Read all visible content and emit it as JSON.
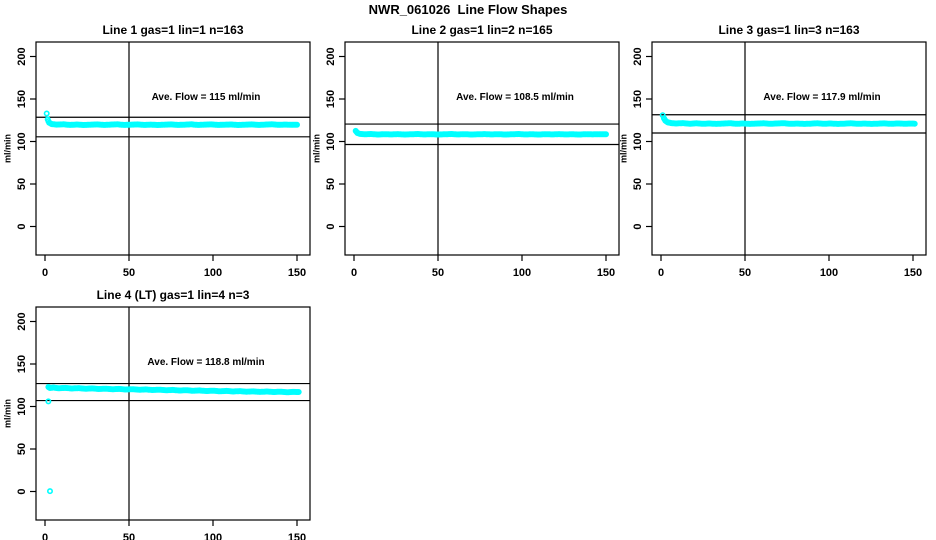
{
  "page_title": "NWR_061026  Line Flow Shapes",
  "colors": {
    "marker": "#00FFFF",
    "axis": "#000000",
    "background": "#FFFFFF"
  },
  "chart_data": [
    {
      "type": "scatter",
      "title": "Line 1 gas=1 lin=1 n=163",
      "ave_flow": 115,
      "ave_flow_label": "Ave. Flow =  115  ml/min",
      "n": 163,
      "ylabel": "ml/min",
      "xticks": [
        0,
        50,
        100,
        150
      ],
      "yticks": [
        0,
        50,
        100,
        150,
        200
      ],
      "xlim": [
        -5,
        157
      ],
      "ylim": [
        -33,
        217
      ],
      "vline_x": 50,
      "limit_upper": 128.5,
      "limit_lower": 105.5,
      "points": [
        [
          1,
          133
        ],
        [
          1.6,
          126
        ],
        [
          2.5,
          122
        ],
        [
          4,
          120.5
        ],
        [
          7,
          119.9
        ],
        [
          11,
          120.2
        ],
        [
          15,
          119.5
        ],
        [
          19,
          120.0
        ],
        [
          23,
          119.4
        ],
        [
          27,
          119.8
        ],
        [
          31,
          120.1
        ],
        [
          35,
          119.5
        ],
        [
          39,
          119.9
        ],
        [
          43,
          120.2
        ],
        [
          47,
          119.5
        ],
        [
          51,
          119.8
        ],
        [
          55,
          120.1
        ],
        [
          59,
          119.5
        ],
        [
          63,
          119.9
        ],
        [
          67,
          119.4
        ],
        [
          71,
          119.8
        ],
        [
          75,
          120.1
        ],
        [
          79,
          119.5
        ],
        [
          83,
          119.8
        ],
        [
          87,
          120.2
        ],
        [
          91,
          119.5
        ],
        [
          95,
          119.9
        ],
        [
          99,
          120.1
        ],
        [
          103,
          119.5
        ],
        [
          107,
          119.8
        ],
        [
          111,
          120.0
        ],
        [
          115,
          119.4
        ],
        [
          119,
          119.8
        ],
        [
          123,
          120.1
        ],
        [
          127,
          119.5
        ],
        [
          131,
          119.9
        ],
        [
          135,
          120.2
        ],
        [
          139,
          119.6
        ],
        [
          143,
          119.9
        ],
        [
          147,
          119.7
        ],
        [
          150,
          119.8
        ]
      ],
      "extra_points": []
    },
    {
      "type": "scatter",
      "title": "Line 2 gas=1 lin=2 n=165",
      "ave_flow": 108.5,
      "ave_flow_label": "Ave. Flow =  108.5  ml/min",
      "n": 165,
      "ylabel": "ml/min",
      "xticks": [
        0,
        50,
        100,
        150
      ],
      "yticks": [
        0,
        50,
        100,
        150,
        200
      ],
      "xlim": [
        -5,
        157
      ],
      "ylim": [
        -33,
        217
      ],
      "vline_x": 50,
      "limit_upper": 120.5,
      "limit_lower": 96.5,
      "points": [
        [
          1,
          112.5
        ],
        [
          2,
          110
        ],
        [
          3.5,
          109
        ],
        [
          6,
          108.5
        ],
        [
          10,
          108.8
        ],
        [
          14,
          108.2
        ],
        [
          18,
          108.6
        ],
        [
          22,
          108.3
        ],
        [
          26,
          108.7
        ],
        [
          30,
          108.2
        ],
        [
          34,
          108.5
        ],
        [
          38,
          108.8
        ],
        [
          42,
          108.3
        ],
        [
          46,
          108.6
        ],
        [
          50,
          108.2
        ],
        [
          54,
          108.5
        ],
        [
          58,
          108.8
        ],
        [
          62,
          108.3
        ],
        [
          66,
          108.6
        ],
        [
          70,
          108.2
        ],
        [
          74,
          108.5
        ],
        [
          78,
          108.7
        ],
        [
          82,
          108.3
        ],
        [
          86,
          108.6
        ],
        [
          90,
          108.2
        ],
        [
          94,
          108.5
        ],
        [
          98,
          108.8
        ],
        [
          102,
          108.3
        ],
        [
          106,
          108.5
        ],
        [
          110,
          108.2
        ],
        [
          114,
          108.6
        ],
        [
          118,
          108.3
        ],
        [
          122,
          108.7
        ],
        [
          126,
          108.3
        ],
        [
          130,
          108.5
        ],
        [
          134,
          108.2
        ],
        [
          138,
          108.6
        ],
        [
          142,
          108.4
        ],
        [
          146,
          108.6
        ],
        [
          150,
          108.5
        ]
      ],
      "extra_points": []
    },
    {
      "type": "scatter",
      "title": "Line 3 gas=1 lin=3 n=163",
      "ave_flow": 117.9,
      "ave_flow_label": "Ave. Flow =  117.9  ml/min",
      "n": 163,
      "ylabel": "ml/min",
      "xticks": [
        0,
        50,
        100,
        150
      ],
      "yticks": [
        0,
        50,
        100,
        150,
        200
      ],
      "xlim": [
        -5,
        157
      ],
      "ylim": [
        -33,
        217
      ],
      "vline_x": 50,
      "limit_upper": 131.5,
      "limit_lower": 110,
      "points": [
        [
          1,
          131
        ],
        [
          1.7,
          127.5
        ],
        [
          2.6,
          124.5
        ],
        [
          4,
          122.5
        ],
        [
          6,
          121.7
        ],
        [
          9,
          121.2
        ],
        [
          13,
          121.6
        ],
        [
          17,
          120.9
        ],
        [
          21,
          121.4
        ],
        [
          25,
          120.8
        ],
        [
          29,
          121.2
        ],
        [
          33,
          120.7
        ],
        [
          37,
          121.1
        ],
        [
          41,
          121.5
        ],
        [
          45,
          120.8
        ],
        [
          49,
          121.2
        ],
        [
          53,
          120.7
        ],
        [
          57,
          121.1
        ],
        [
          61,
          121.4
        ],
        [
          65,
          120.8
        ],
        [
          69,
          121.2
        ],
        [
          73,
          121.5
        ],
        [
          77,
          120.8
        ],
        [
          81,
          121.1
        ],
        [
          85,
          120.7
        ],
        [
          89,
          121.0
        ],
        [
          93,
          121.4
        ],
        [
          97,
          120.8
        ],
        [
          101,
          121.2
        ],
        [
          105,
          120.7
        ],
        [
          109,
          121.0
        ],
        [
          113,
          121.4
        ],
        [
          117,
          120.8
        ],
        [
          121,
          121.1
        ],
        [
          125,
          120.7
        ],
        [
          129,
          121.0
        ],
        [
          133,
          121.3
        ],
        [
          137,
          120.8
        ],
        [
          141,
          121.2
        ],
        [
          145,
          120.9
        ],
        [
          148,
          121.1
        ],
        [
          151,
          121.0
        ]
      ],
      "extra_points": []
    },
    {
      "type": "scatter",
      "title": "Line 4 (LT) gas=1 lin=4 n=3",
      "ave_flow": 118.8,
      "ave_flow_label": "Ave. Flow =  118.8  ml/min",
      "n": 3,
      "ylabel": "ml/min",
      "xticks": [
        0,
        50,
        100,
        150
      ],
      "yticks": [
        0,
        50,
        100,
        150,
        200
      ],
      "xlim": [
        -5,
        157
      ],
      "ylim": [
        -33,
        217
      ],
      "vline_x": 50,
      "limit_upper": 127,
      "limit_lower": 107,
      "points": [
        [
          2,
          123
        ],
        [
          3,
          121.8
        ],
        [
          5,
          122.3
        ],
        [
          8,
          121.5
        ],
        [
          12,
          121.9
        ],
        [
          16,
          121.2
        ],
        [
          20,
          121.6
        ],
        [
          24,
          120.9
        ],
        [
          28,
          121.3
        ],
        [
          32,
          120.6
        ],
        [
          36,
          121.0
        ],
        [
          40,
          120.3
        ],
        [
          44,
          120.7
        ],
        [
          48,
          120.0
        ],
        [
          52,
          120.4
        ],
        [
          56,
          119.7
        ],
        [
          60,
          120.1
        ],
        [
          64,
          119.4
        ],
        [
          68,
          119.8
        ],
        [
          72,
          119.1
        ],
        [
          76,
          119.5
        ],
        [
          80,
          118.8
        ],
        [
          84,
          119.2
        ],
        [
          88,
          118.5
        ],
        [
          92,
          118.9
        ],
        [
          96,
          118.2
        ],
        [
          100,
          118.6
        ],
        [
          104,
          117.9
        ],
        [
          108,
          118.3
        ],
        [
          112,
          117.7
        ],
        [
          116,
          118.1
        ],
        [
          120,
          117.4
        ],
        [
          124,
          117.8
        ],
        [
          128,
          117.2
        ],
        [
          132,
          117.6
        ],
        [
          136,
          117.0
        ],
        [
          140,
          117.4
        ],
        [
          144,
          116.8
        ],
        [
          148,
          117.2
        ],
        [
          151,
          117.0
        ]
      ],
      "extra_points": [
        [
          2,
          106
        ],
        [
          3,
          0.5
        ]
      ]
    }
  ]
}
